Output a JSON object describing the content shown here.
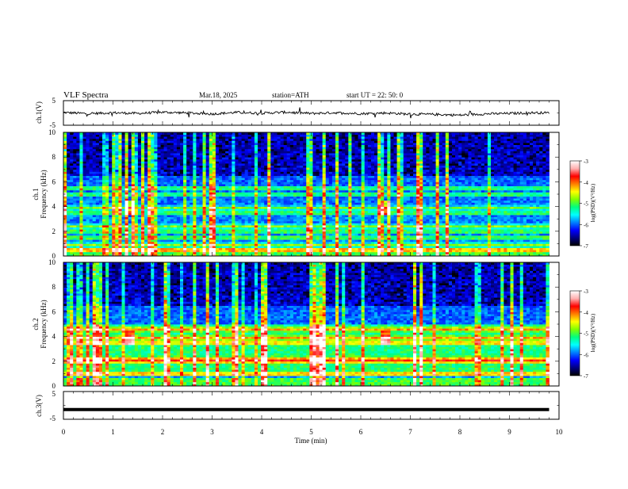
{
  "header": {
    "title": "VLF  Spectra",
    "date": "Mar.18, 2025",
    "station": "station=ATH",
    "start_ut": "start  UT  =    22: 50: 0"
  },
  "colors": {
    "spectrogram_colormap": [
      "#000000",
      "#00007f",
      "#0000ff",
      "#0080ff",
      "#00ffff",
      "#00ff80",
      "#80ff00",
      "#ffff00",
      "#ff8000",
      "#ff0000",
      "#ffb0b0",
      "#ffffff"
    ],
    "trace": "#000000",
    "frame": "#000000"
  },
  "chart_data": [
    {
      "type": "line",
      "name": "ch1-waveform",
      "ylabel": "ch.1(V)",
      "ylim": [
        -5,
        5
      ],
      "yticks": [
        "5",
        "-5"
      ],
      "xlim": [
        0,
        10
      ],
      "mean_level": 0,
      "series": [
        {
          "x": [
            0,
            0.5,
            1,
            1.5,
            2,
            2.5,
            3,
            3.5,
            4,
            4.5,
            5,
            5.5,
            6,
            6.5,
            7,
            7.5,
            8,
            8.5,
            9,
            9.5,
            9.8
          ],
          "values": [
            0.2,
            -0.3,
            0.1,
            -0.2,
            0.3,
            0.0,
            -0.4,
            0.2,
            -0.1,
            0.3,
            -0.2,
            0.1,
            -0.3,
            0.0,
            -0.5,
            -0.6,
            -0.9,
            -0.4,
            -0.2,
            0.1,
            0.0
          ]
        }
      ]
    },
    {
      "type": "heatmap",
      "name": "ch1-spectrogram",
      "ylabel": "ch.1\nFrequency (kHz)",
      "xlim": [
        0,
        10
      ],
      "ylim": [
        0,
        10
      ],
      "yticks": [
        "0",
        "2",
        "4",
        "6",
        "8",
        "10"
      ],
      "data_extent_min": 9.8,
      "colorbar": {
        "label": "log(PSD)(V²/Hz)",
        "range": [
          -7,
          -3
        ],
        "ticks": [
          "-3",
          "-4",
          "-5",
          "-6",
          "-7"
        ]
      },
      "bands_khz": [
        0.5,
        0.9,
        1.5,
        2.0,
        2.4,
        3.5,
        3.9,
        5.0,
        5.5
      ],
      "features": [
        "broadband sferics",
        "bursts near 1.3 min and 6.5 min at ~4 kHz"
      ]
    },
    {
      "type": "heatmap",
      "name": "ch2-spectrogram",
      "ylabel": "ch.2\nFrequency (kHz)",
      "xlim": [
        0,
        10
      ],
      "ylim": [
        0,
        10
      ],
      "yticks": [
        "0",
        "2",
        "4",
        "6",
        "8",
        "10"
      ],
      "data_extent_min": 9.8,
      "colorbar": {
        "label": "log(PSD)(V²/Hz)",
        "range": [
          -7,
          -3
        ],
        "ticks": [
          "-3",
          "-4",
          "-5",
          "-6",
          "-7"
        ]
      },
      "bands_khz": [
        1.0,
        2.0,
        2.2,
        3.5,
        3.9,
        4.6
      ],
      "features": [
        "broadband sferics",
        "bursts near 1.3 min and 6.5 min at ~4 kHz"
      ]
    },
    {
      "type": "line",
      "name": "ch3-waveform",
      "ylabel": "ch.3(V)",
      "ylim": [
        -5,
        5
      ],
      "yticks": [
        "5",
        "-5"
      ],
      "xlim": [
        0,
        10
      ],
      "series": [
        {
          "x": [
            0,
            9.8
          ],
          "values": [
            -1.5,
            -1.5
          ]
        }
      ]
    }
  ],
  "x_axis": {
    "label": "Time  (min)",
    "ticks": [
      "0",
      "1",
      "2",
      "3",
      "4",
      "5",
      "6",
      "7",
      "8",
      "9",
      "10"
    ]
  }
}
